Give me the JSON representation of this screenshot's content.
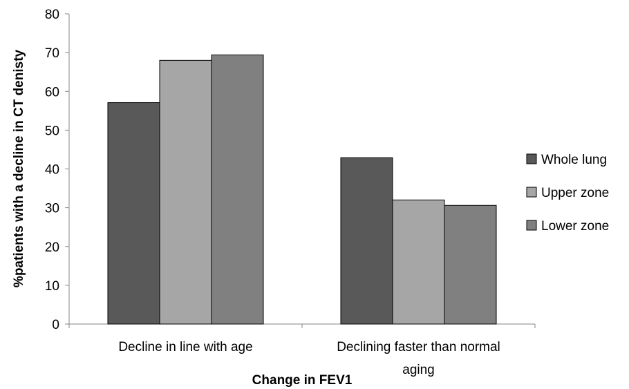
{
  "chart_data": {
    "type": "bar",
    "xlabel": "Change in FEV1",
    "ylabel": "%patients with a decline in CT denisty",
    "ylim": [
      0,
      80
    ],
    "yticks": [
      0,
      10,
      20,
      30,
      40,
      50,
      60,
      70,
      80
    ],
    "categories": [
      [
        "Decline in line with age"
      ],
      [
        "Declining faster than normal",
        "aging"
      ]
    ],
    "series": [
      {
        "name": "Whole lung",
        "color": "#595959",
        "values": [
          57.1,
          42.9
        ]
      },
      {
        "name": "Upper zone",
        "color": "#a6a6a6",
        "values": [
          68.0,
          32.0
        ]
      },
      {
        "name": "Lower zone",
        "color": "#808080",
        "values": [
          69.4,
          30.6
        ]
      }
    ],
    "grid": false,
    "legend_position": "right"
  }
}
